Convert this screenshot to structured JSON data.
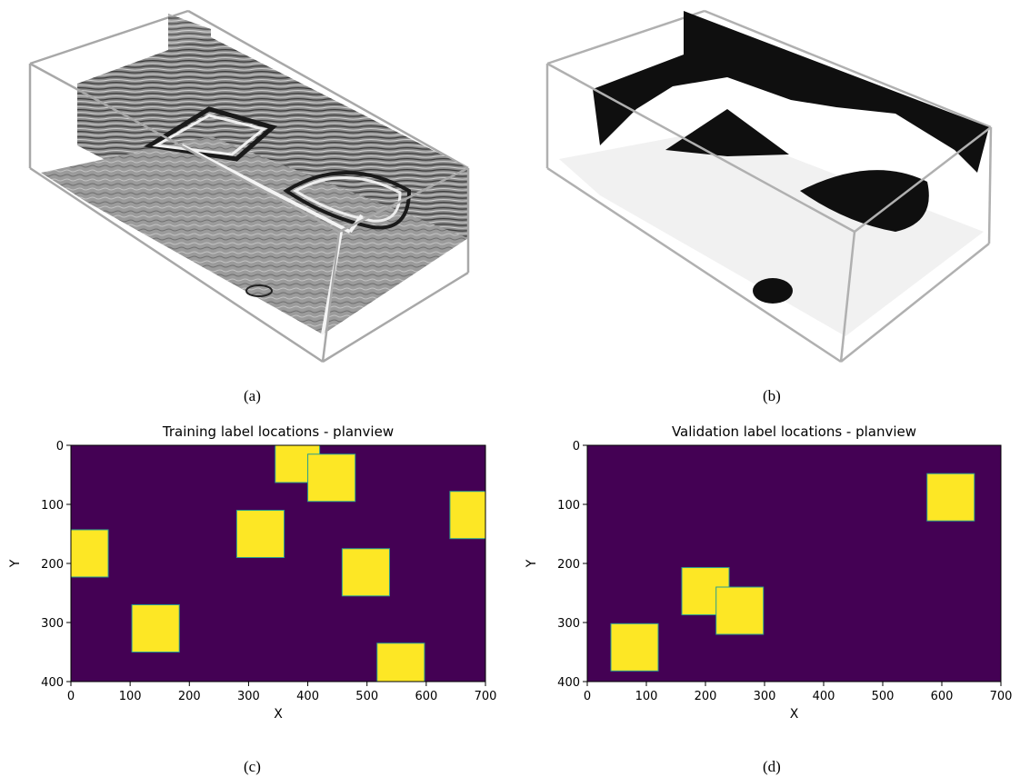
{
  "captions": {
    "a": "(a)",
    "b": "(b)",
    "c": "(c)",
    "d": "(d)"
  },
  "chart_data": [
    {
      "type": "heatmap",
      "title": "Training label locations - planview",
      "xlabel": "X",
      "ylabel": "Y",
      "xlim": [
        0,
        700
      ],
      "ylim": [
        400,
        0
      ],
      "xticks": [
        0,
        100,
        200,
        300,
        400,
        500,
        600,
        700
      ],
      "yticks": [
        0,
        100,
        200,
        300,
        400
      ],
      "background_color": "#440154",
      "label_color": "#fde725",
      "labels": [
        {
          "x0": 345,
          "x1": 420,
          "y0": 0,
          "y1": 63
        },
        {
          "x0": 400,
          "x1": 480,
          "y0": 15,
          "y1": 95
        },
        {
          "x0": 640,
          "x1": 700,
          "y0": 78,
          "y1": 158
        },
        {
          "x0": 280,
          "x1": 360,
          "y0": 110,
          "y1": 190
        },
        {
          "x0": 0,
          "x1": 63,
          "y0": 143,
          "y1": 223
        },
        {
          "x0": 458,
          "x1": 538,
          "y0": 175,
          "y1": 255
        },
        {
          "x0": 103,
          "x1": 183,
          "y0": 270,
          "y1": 350
        },
        {
          "x0": 517,
          "x1": 597,
          "y0": 335,
          "y1": 400
        }
      ]
    },
    {
      "type": "heatmap",
      "title": "Validation label locations - planview",
      "xlabel": "X",
      "ylabel": "Y",
      "xlim": [
        0,
        700
      ],
      "ylim": [
        400,
        0
      ],
      "xticks": [
        0,
        100,
        200,
        300,
        400,
        500,
        600,
        700
      ],
      "yticks": [
        0,
        100,
        200,
        300,
        400
      ],
      "background_color": "#440154",
      "label_color": "#fde725",
      "labels": [
        {
          "x0": 575,
          "x1": 655,
          "y0": 48,
          "y1": 128
        },
        {
          "x0": 160,
          "x1": 240,
          "y0": 207,
          "y1": 287
        },
        {
          "x0": 218,
          "x1": 298,
          "y0": 240,
          "y1": 320
        },
        {
          "x0": 40,
          "x1": 120,
          "y0": 302,
          "y1": 382
        }
      ]
    }
  ]
}
